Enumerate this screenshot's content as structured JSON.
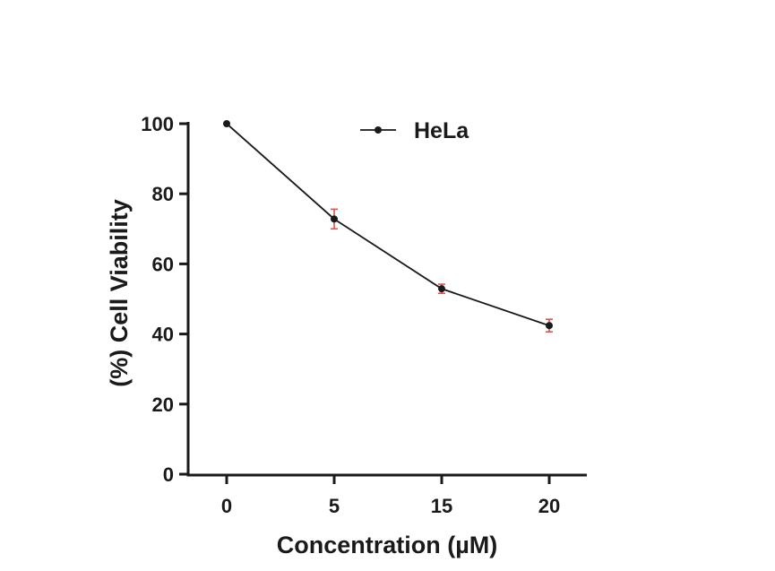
{
  "chart_data": {
    "type": "line",
    "categories": [
      "0",
      "5",
      "15",
      "20"
    ],
    "series": [
      {
        "name": "HeLa",
        "values": [
          100,
          72.8,
          52.9,
          42.4
        ],
        "errors": [
          0,
          2.8,
          1.3,
          1.8
        ]
      }
    ],
    "xlabel": "Concentration (µM)",
    "ylabel": "(%) Cell Viability",
    "ylim": [
      0,
      100
    ],
    "yticks": [
      "0",
      "20",
      "40",
      "60",
      "80",
      "100"
    ],
    "grid": false,
    "legend": "top-center",
    "colors": {
      "line": "#1a1a1a",
      "error_bar": "#d9534f",
      "axis": "#1a1a1a"
    }
  }
}
